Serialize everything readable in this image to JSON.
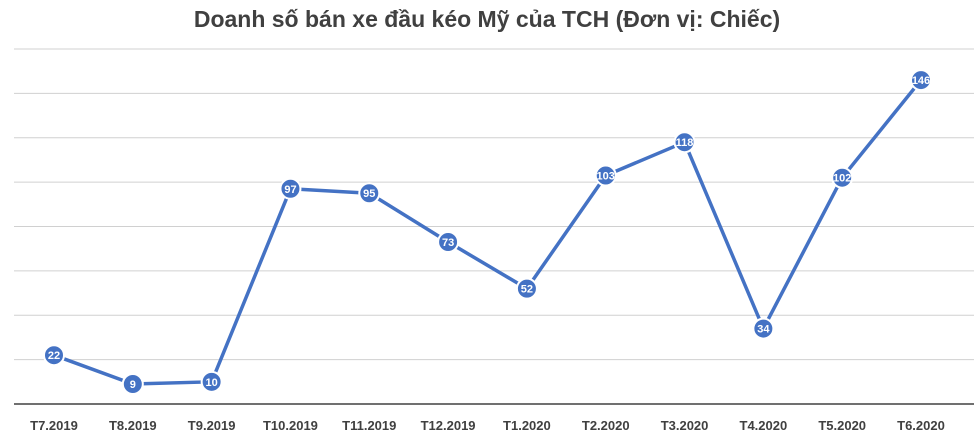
{
  "chart_data": {
    "type": "line",
    "title": "Doanh số bán xe đầu kéo Mỹ của TCH (Đơn vị: Chiếc)",
    "xlabel": "",
    "ylabel": "",
    "categories": [
      "T7.2019",
      "T8.2019",
      "T9.2019",
      "T10.2019",
      "T11.2019",
      "T12.2019",
      "T1.2020",
      "T2.2020",
      "T3.2020",
      "T4.2020",
      "T5.2020",
      "T6.2020"
    ],
    "series": [
      {
        "values": [
          22,
          9,
          10,
          97,
          95,
          73,
          52,
          103,
          118,
          34,
          102,
          146
        ],
        "color": "#4472c4"
      }
    ],
    "ylim": [
      0,
      160
    ],
    "y_tick_step": 20,
    "grid": true,
    "legend": "none",
    "data_labels": true
  }
}
